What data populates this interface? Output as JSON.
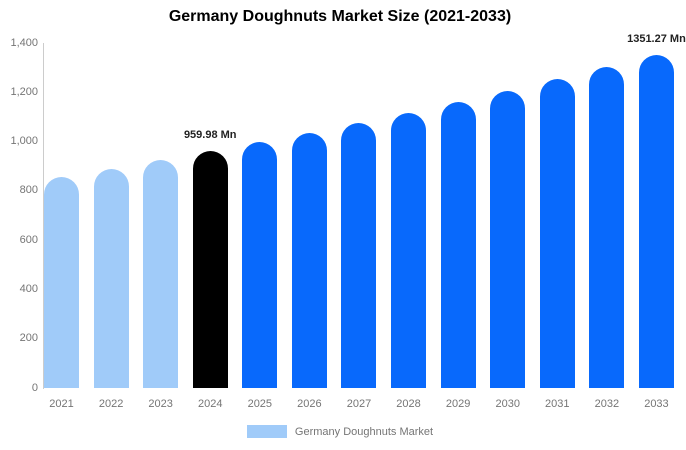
{
  "title": "Germany Doughnuts Market Size (2021-2033)",
  "legend": {
    "label": "Germany Doughnuts Market"
  },
  "colors": {
    "historical": "#a0cbf9",
    "base_year": "#000000",
    "forecast": "#0869fc",
    "axis_line": "#cccccc",
    "tick_text": "#757575",
    "annotation_text": "#222222"
  },
  "chart_data": {
    "type": "bar",
    "title": "Germany Doughnuts Market Size (2021-2033)",
    "categories": [
      "2021",
      "2022",
      "2023",
      "2024",
      "2025",
      "2026",
      "2027",
      "2028",
      "2029",
      "2030",
      "2031",
      "2032",
      "2033"
    ],
    "values": [
      856.6,
      889.7,
      924.2,
      959.98,
      997.2,
      1035.8,
      1075.9,
      1117.5,
      1160.8,
      1205.7,
      1252.4,
      1300.9,
      1351.27
    ],
    "color_keys": [
      "historical",
      "historical",
      "historical",
      "base_year",
      "forecast",
      "forecast",
      "forecast",
      "forecast",
      "forecast",
      "forecast",
      "forecast",
      "forecast",
      "forecast"
    ],
    "annotations": [
      {
        "index": 3,
        "text": "959.98 Mn"
      },
      {
        "index": 12,
        "text": "1351.27 Mn"
      }
    ],
    "xlabel": "",
    "ylabel": "",
    "ylim": [
      0,
      1400
    ],
    "yticks": [
      {
        "value": 1400,
        "label": "1,400"
      },
      {
        "value": 1200,
        "label": "1,200"
      },
      {
        "value": 1000,
        "label": "1,000"
      },
      {
        "value": 800,
        "label": "800"
      },
      {
        "value": 600,
        "label": "600"
      },
      {
        "value": 400,
        "label": "400"
      },
      {
        "value": 200,
        "label": "200"
      },
      {
        "value": 0,
        "label": "0"
      }
    ],
    "grid": false,
    "legend_position": "bottom",
    "legend_entries": [
      "Germany Doughnuts Market"
    ]
  }
}
